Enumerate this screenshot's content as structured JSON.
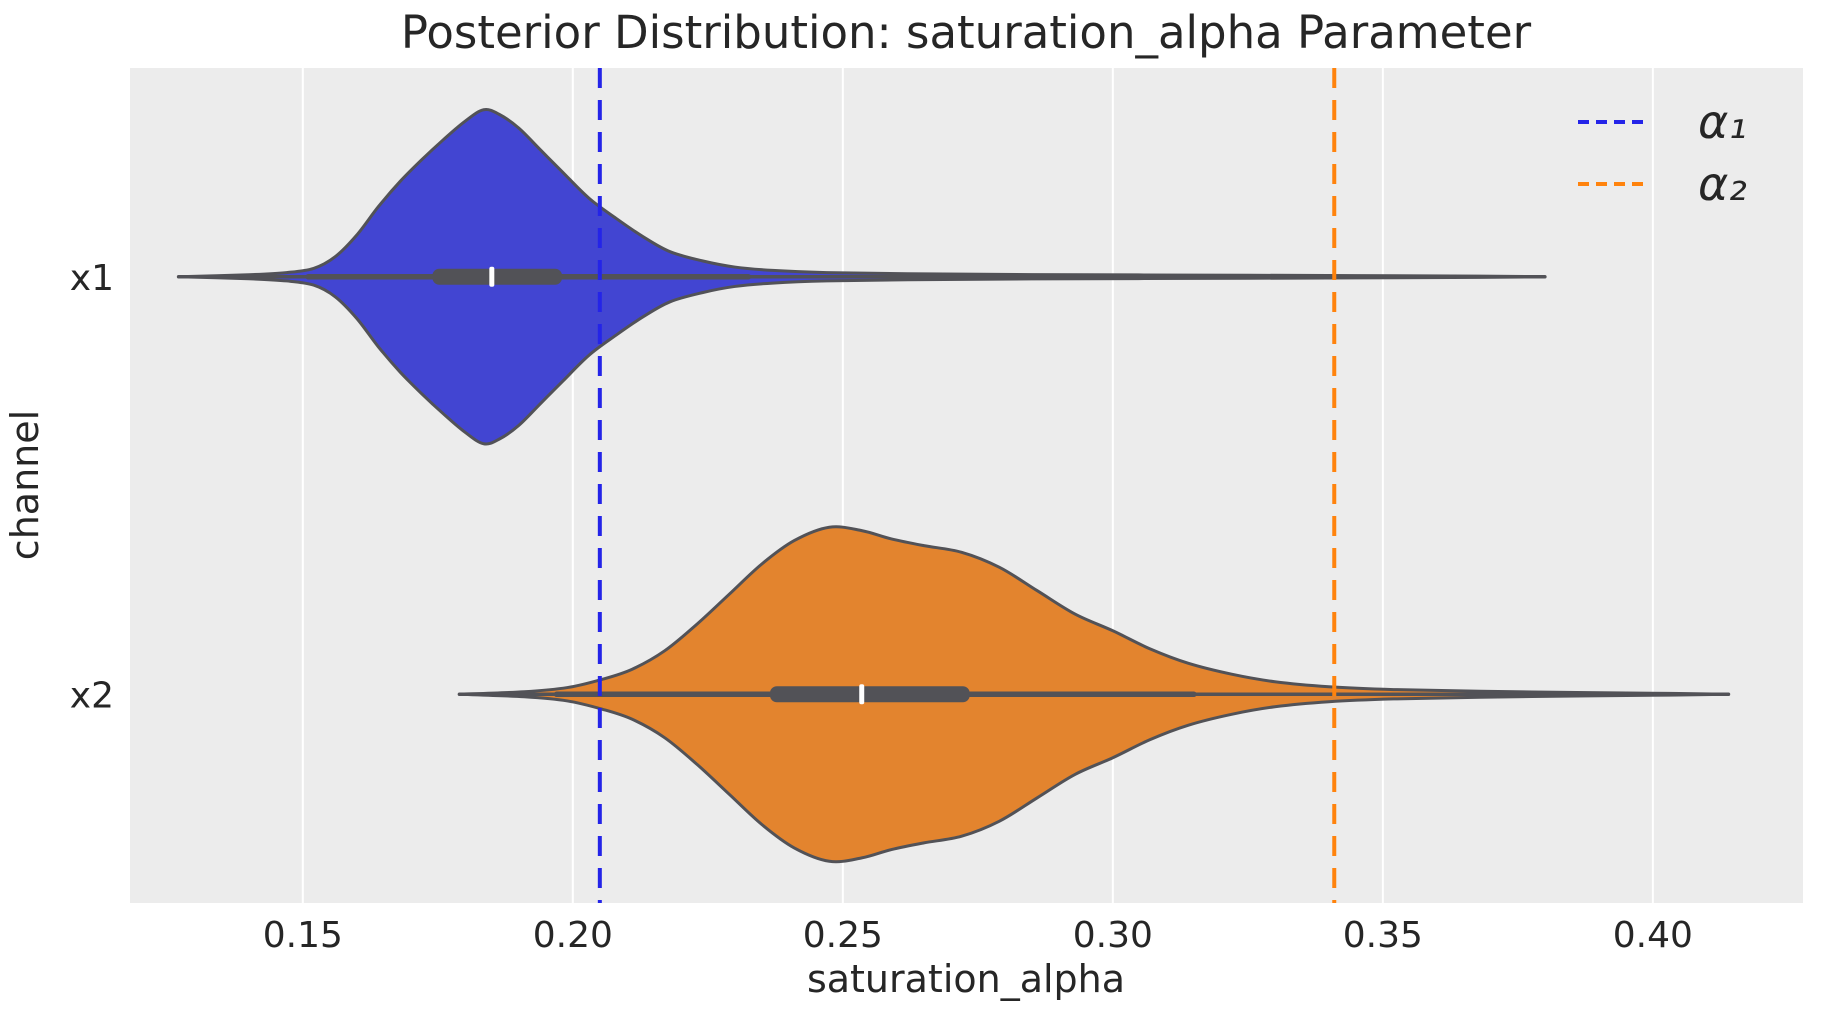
{
  "theme": {
    "figure_bg": "#ffffff",
    "panel_bg": "#ececec",
    "grid_color": "#ffffff",
    "text_color": "#262626",
    "inner_color": "#525257"
  },
  "chart_data": {
    "type": "violin",
    "orientation": "horizontal",
    "title": "Posterior Distribution: saturation_alpha Parameter",
    "xlabel": "saturation_alpha",
    "ylabel": "channel",
    "categories": [
      "x1",
      "x2"
    ],
    "xlim": [
      0.118,
      0.4278
    ],
    "xticks": [
      "0.15",
      "0.20",
      "0.25",
      "0.30",
      "0.35",
      "0.40"
    ],
    "grid": "white vertical gridlines on light gray panel, no spines, no tick marks",
    "legend_position": "upper right, frameless",
    "violins": [
      {
        "channel": "x1",
        "fill_color": "#4245d2",
        "edge_color": "#525257",
        "support_min": 0.127,
        "support_max": 0.38,
        "peak": 0.1835,
        "q1": 0.174,
        "median": 0.185,
        "q3": 0.198,
        "whisker_low": 0.151,
        "whisker_high": 0.2325,
        "density_profile": [
          [
            0.127,
            0.0
          ],
          [
            0.14,
            0.012
          ],
          [
            0.147,
            0.025
          ],
          [
            0.152,
            0.05
          ],
          [
            0.156,
            0.12
          ],
          [
            0.16,
            0.25
          ],
          [
            0.164,
            0.42
          ],
          [
            0.168,
            0.57
          ],
          [
            0.172,
            0.7
          ],
          [
            0.176,
            0.82
          ],
          [
            0.18,
            0.93
          ],
          [
            0.1835,
            1.0
          ],
          [
            0.1865,
            0.97
          ],
          [
            0.19,
            0.89
          ],
          [
            0.194,
            0.76
          ],
          [
            0.198,
            0.63
          ],
          [
            0.203,
            0.47
          ],
          [
            0.208,
            0.35
          ],
          [
            0.213,
            0.24
          ],
          [
            0.218,
            0.15
          ],
          [
            0.224,
            0.095
          ],
          [
            0.23,
            0.058
          ],
          [
            0.237,
            0.038
          ],
          [
            0.247,
            0.025
          ],
          [
            0.262,
            0.018
          ],
          [
            0.285,
            0.013
          ],
          [
            0.315,
            0.01
          ],
          [
            0.345,
            0.007
          ],
          [
            0.368,
            0.004
          ],
          [
            0.38,
            0.0
          ]
        ]
      },
      {
        "channel": "x2",
        "fill_color": "#e3842e",
        "edge_color": "#525257",
        "support_min": 0.179,
        "support_max": 0.414,
        "peak": 0.2475,
        "q1": 0.2365,
        "median": 0.2535,
        "q3": 0.2735,
        "whisker_low": 0.197,
        "whisker_high": 0.315,
        "density_profile": [
          [
            0.179,
            0.0
          ],
          [
            0.191,
            0.015
          ],
          [
            0.199,
            0.04
          ],
          [
            0.2055,
            0.09
          ],
          [
            0.211,
            0.15
          ],
          [
            0.217,
            0.26
          ],
          [
            0.223,
            0.42
          ],
          [
            0.229,
            0.6
          ],
          [
            0.235,
            0.78
          ],
          [
            0.241,
            0.92
          ],
          [
            0.2475,
            1.0
          ],
          [
            0.2535,
            0.98
          ],
          [
            0.259,
            0.93
          ],
          [
            0.265,
            0.89
          ],
          [
            0.272,
            0.85
          ],
          [
            0.279,
            0.76
          ],
          [
            0.286,
            0.62
          ],
          [
            0.293,
            0.48
          ],
          [
            0.3,
            0.38
          ],
          [
            0.307,
            0.27
          ],
          [
            0.314,
            0.185
          ],
          [
            0.322,
            0.12
          ],
          [
            0.33,
            0.075
          ],
          [
            0.34,
            0.045
          ],
          [
            0.352,
            0.028
          ],
          [
            0.368,
            0.018
          ],
          [
            0.388,
            0.01
          ],
          [
            0.403,
            0.005
          ],
          [
            0.414,
            0.0
          ]
        ]
      }
    ],
    "ref_lines": [
      {
        "label": "α₁",
        "value": 0.205,
        "color": "#2424e8",
        "style": "dashed"
      },
      {
        "label": "α₂",
        "value": 0.341,
        "color": "#ff830d",
        "style": "dashed"
      }
    ],
    "legend": {
      "entries": [
        {
          "label": "α₁",
          "color": "#2424e8",
          "line_style": "dashed"
        },
        {
          "label": "α₂",
          "color": "#ff830d",
          "line_style": "dashed"
        }
      ]
    }
  }
}
